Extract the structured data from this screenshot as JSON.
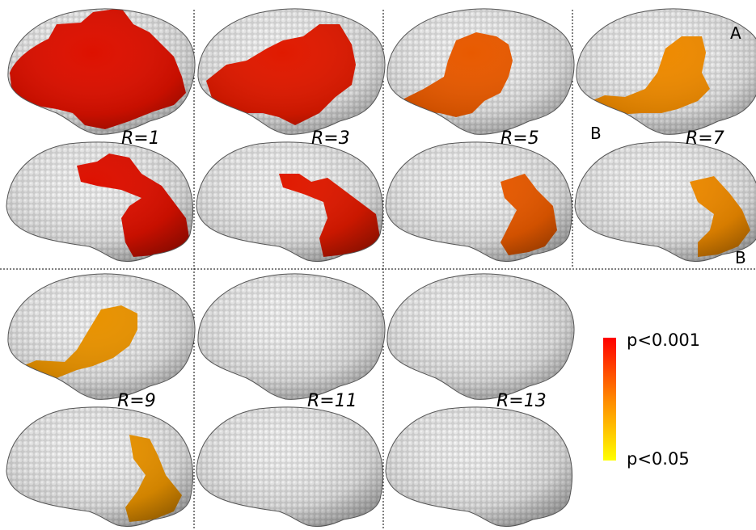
{
  "panels": [
    {
      "r_label": "R=1",
      "color": "#dd1100",
      "lateral_patch": "large",
      "medial_patch": "large"
    },
    {
      "r_label": "R=3",
      "color": "#e01a00",
      "lateral_patch": "medium",
      "medial_patch": "medium"
    },
    {
      "r_label": "R=5",
      "color": "#e85a00",
      "lateral_patch": "medium",
      "medial_patch": "small"
    },
    {
      "r_label": "R=7",
      "color": "#ee8a00",
      "lateral_patch": "small",
      "medial_patch": "small"
    },
    {
      "r_label": "R=9",
      "color": "#e89200",
      "lateral_patch": "small",
      "medial_patch": "small"
    },
    {
      "r_label": "R=11",
      "color": "",
      "lateral_patch": "none",
      "medial_patch": "none"
    },
    {
      "r_label": "R=13",
      "color": "",
      "lateral_patch": "none",
      "medial_patch": "none"
    }
  ],
  "annotations": {
    "a_label": "A",
    "b_label_left": "B",
    "b_label_right": "B"
  },
  "colorbar": {
    "top_label": "p<0.001",
    "bottom_label": "p<0.05",
    "top_color": "#ff0000",
    "mid_color": "#ff8800",
    "bottom_color": "#ffff00"
  },
  "brain_color": "#cfcfcf"
}
